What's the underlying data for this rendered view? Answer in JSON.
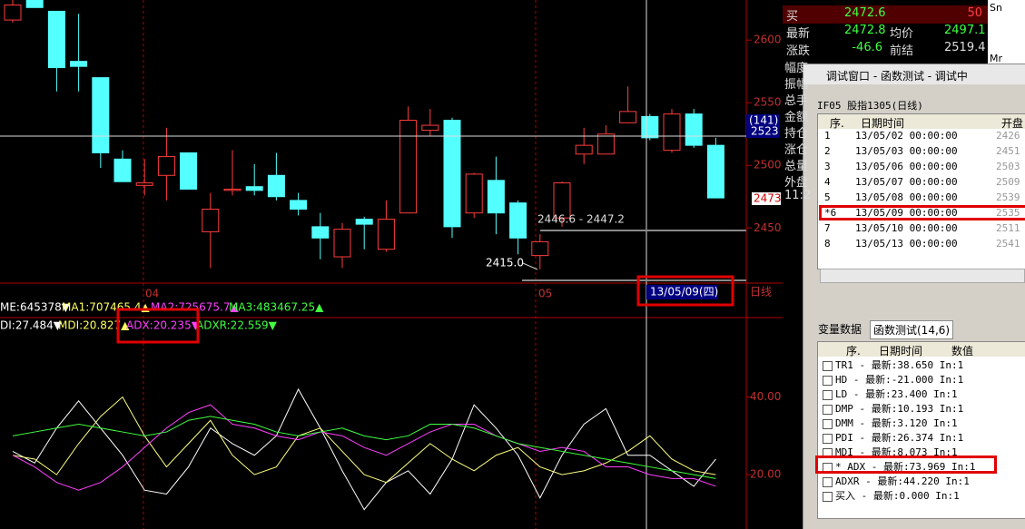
{
  "chart": {
    "type": "candlestick",
    "ylim": [
      2406,
      2632
    ],
    "yticks": [
      2450,
      2500,
      2550,
      2600
    ],
    "open": [
      2616,
      2632,
      2623,
      2583,
      2570,
      2505,
      2484,
      2492,
      2510,
      2447,
      2480,
      2483,
      2492,
      2472,
      2451,
      2427,
      2457,
      2433,
      2462,
      2528,
      2536,
      2462,
      2488,
      2470,
      2428,
      2458,
      2509,
      2509,
      2534,
      2539,
      2512,
      2541,
      2516
    ],
    "high": [
      2632,
      2632,
      2623,
      2621,
      2570,
      2512,
      2505,
      2530,
      2510,
      2478,
      2512,
      2501,
      2510,
      2478,
      2462,
      2454,
      2459,
      2472,
      2547,
      2545,
      2538,
      2494,
      2507,
      2472,
      2445,
      2487,
      2530,
      2532,
      2563,
      2541,
      2545,
      2545,
      2522
    ],
    "low": [
      2614,
      2626,
      2559,
      2559,
      2498,
      2487,
      2476,
      2472,
      2481,
      2418,
      2476,
      2476,
      2472,
      2460,
      2425,
      2418,
      2433,
      2431,
      2462,
      2523,
      2442,
      2458,
      2445,
      2429,
      2417,
      2451,
      2501,
      2509,
      2534,
      2520,
      2510,
      2514,
      2474
    ],
    "close": [
      2628,
      2626,
      2578,
      2579,
      2510,
      2487,
      2486,
      2507,
      2481,
      2465,
      2481,
      2480,
      2475,
      2465,
      2442,
      2449,
      2453,
      2457,
      2536,
      2532,
      2451,
      2493,
      2462,
      2442,
      2439,
      2486,
      2516,
      2525,
      2543,
      2522,
      2541,
      2516,
      2474
    ],
    "x_labels": [
      "04",
      "05"
    ],
    "crosshair_tag": [
      "(141)",
      "2523"
    ],
    "last_price": "2473",
    "annotations": [
      "2446.6 - 2447.2",
      "2415.0"
    ],
    "cursor_date": "13/05/09(四)",
    "period": "日线",
    "ma_legend": [
      "ME:645378▼",
      "MA1:707465.4▲",
      "MA2:725675.7▲",
      "MA3:483467.25▲"
    ]
  },
  "indicator": {
    "type": "line",
    "ylim": [
      6,
      60
    ],
    "yticks": [
      {
        "value": 20,
        "label": "20.00"
      },
      {
        "value": 40,
        "label": "40.00"
      }
    ],
    "legend": [
      "DI:27.484▼",
      "MDI:20.827▲",
      "ADX:20.235▼",
      "ADXR:22.559▼"
    ],
    "series": [
      {
        "color": "#ffffff",
        "values": [
          26,
          23,
          32,
          39,
          32,
          25,
          16,
          15,
          22,
          32,
          28,
          25,
          30,
          42,
          32,
          21,
          11,
          18,
          21,
          15,
          24,
          38,
          32,
          25,
          14,
          25,
          33,
          37,
          25,
          25,
          21,
          17,
          24
        ]
      },
      {
        "color": "#ffff80",
        "values": [
          25,
          24,
          20,
          28,
          35,
          40,
          30,
          22,
          28,
          34,
          25,
          20,
          22,
          30,
          32,
          26,
          20,
          18,
          23,
          28,
          24,
          21,
          25,
          27,
          22,
          20,
          21,
          23,
          26,
          30,
          24,
          21,
          20
        ]
      },
      {
        "color": "#ff40ff",
        "values": [
          25,
          22,
          18,
          16,
          18,
          22,
          27,
          32,
          36,
          38,
          33,
          32,
          30,
          29,
          31,
          30,
          27,
          25,
          28,
          31,
          33,
          33,
          30,
          28,
          26,
          27,
          26,
          22,
          22,
          20,
          19,
          19,
          17
        ]
      },
      {
        "color": "#40ff40",
        "values": [
          30,
          31,
          32,
          33,
          32,
          31,
          30,
          31,
          34,
          35,
          34,
          33,
          31,
          30,
          31,
          32,
          30,
          29,
          30,
          33,
          33,
          32,
          30,
          28,
          27,
          26,
          25,
          24,
          23,
          22,
          21,
          20,
          19
        ]
      }
    ],
    "button": "交"
  },
  "quote": {
    "rows": [
      [
        "买",
        "2472.6",
        "",
        "50"
      ],
      [
        "最新",
        "2472.8",
        "均价",
        "2497.1"
      ],
      [
        "涨跌",
        "-46.6",
        "前结",
        "2519.4"
      ]
    ],
    "labels": [
      "幅度",
      "振幅",
      "总手",
      "金额",
      "持仓",
      "涨仓",
      "总量",
      "外盘",
      "11:2"
    ],
    "side": [
      "Sn",
      "Mr"
    ]
  },
  "debug": {
    "title": "调试窗口 - 函数测试 - 调试中",
    "header": "IF05 股指1305(日线)",
    "columns": [
      "序.",
      "日期时间",
      "开盘"
    ],
    "rows": [
      [
        "1",
        "13/05/02 00:00:00",
        "2426"
      ],
      [
        "2",
        "13/05/03 00:00:00",
        "2451"
      ],
      [
        "3",
        "13/05/06 00:00:00",
        "2503"
      ],
      [
        "4",
        "13/05/07 00:00:00",
        "2509"
      ],
      [
        "5",
        "13/05/08 00:00:00",
        "2539"
      ],
      [
        "*6",
        "13/05/09 00:00:00",
        "2535"
      ],
      [
        "7",
        "13/05/10 00:00:00",
        "2511"
      ],
      [
        "8",
        "13/05/13 00:00:00",
        "2541"
      ]
    ],
    "tabs": [
      "变量数据",
      "函数测试(14,6)"
    ],
    "var_columns": [
      "序.",
      "日期时间",
      "数值"
    ],
    "vars": [
      "TR1  -  最新:38.650  In:1",
      "HD  -  最新:-21.000  In:1",
      "LD  -  最新:23.400  In:1",
      "DMP  -  最新:10.193  In:1",
      "DMM  -  最新:3.120  In:1",
      "PDI  -  最新:26.374  In:1",
      "MDI  -  最新:8.073  In:1",
      "* ADX  -  最新:73.969  In:1",
      "ADXR  -  最新:44.220  In:1",
      "买入  -  最新:0.000  In:1"
    ]
  }
}
